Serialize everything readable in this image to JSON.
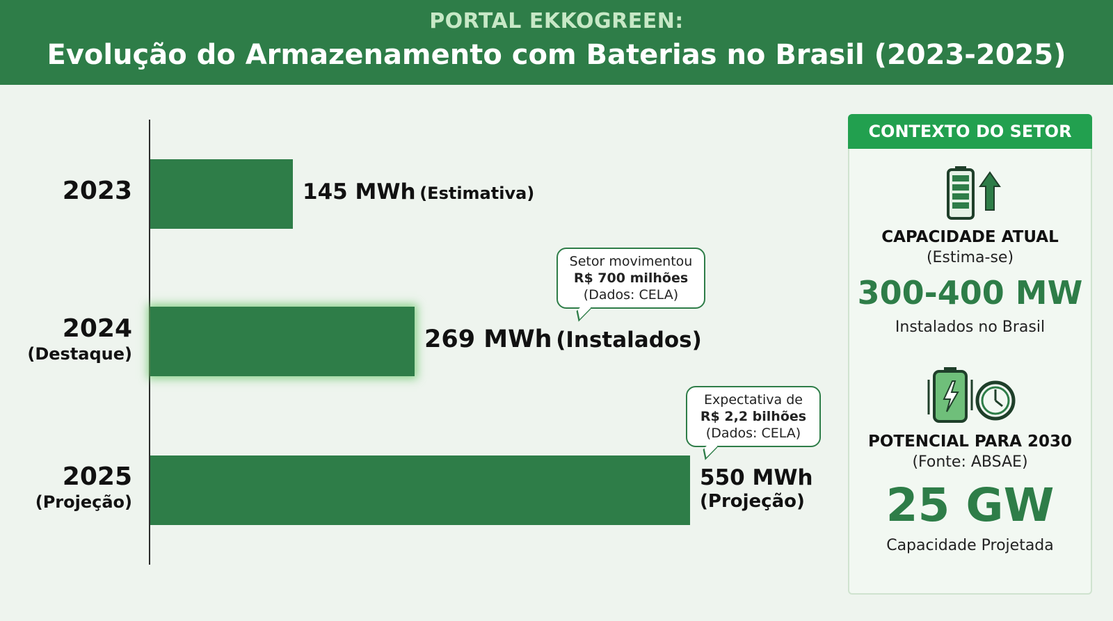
{
  "header": {
    "subtitle": "PORTAL EKKOGREEN:",
    "title": "Evolução do Armazenamento com Baterias no Brasil (2023-2025)"
  },
  "chart_data": {
    "type": "bar",
    "orientation": "horizontal",
    "title": "Evolução do Armazenamento com Baterias no Brasil (2023-2025)",
    "unit": "MWh",
    "categories": [
      "2023",
      "2024",
      "2025"
    ],
    "values": [
      145,
      269,
      550
    ],
    "category_notes": [
      "",
      "(Destaque)",
      "(Projeção)"
    ],
    "value_labels": [
      {
        "value": "145 MWh",
        "note": "(Estimativa)"
      },
      {
        "value": "269 MWh",
        "note": "(Instalados)"
      },
      {
        "value": "550 MWh",
        "note": "(Projeção)"
      }
    ],
    "annotations": [
      {
        "category": "2024",
        "lines": [
          "Setor movimentou",
          "R$ 700 milhões",
          "(Dados: CELA)"
        ]
      },
      {
        "category": "2025",
        "lines": [
          "Expectativa de",
          "R$ 2,2 bilhões",
          "(Dados: CELA)"
        ]
      }
    ],
    "xlim": [
      0,
      550
    ],
    "grid": false,
    "color": "#2e7d48"
  },
  "panel": {
    "header": "CONTEXTO DO SETOR",
    "current": {
      "icon": "battery-up-icon",
      "title": "CAPACIDADE ATUAL",
      "note": "(Estima-se)",
      "value": "300-400 MW",
      "caption": "Instalados no Brasil"
    },
    "potential": {
      "icon": "battery-clock-icon",
      "title": "POTENCIAL PARA 2030",
      "note": "(Fonte: ABSAE)",
      "value": "25 GW",
      "caption": "Capacidade Projetada"
    }
  },
  "colors": {
    "brand_green": "#2e7d48",
    "panel_header": "#22a04f",
    "header_subtitle": "#c7e8c6",
    "background": "#eef4ee"
  }
}
